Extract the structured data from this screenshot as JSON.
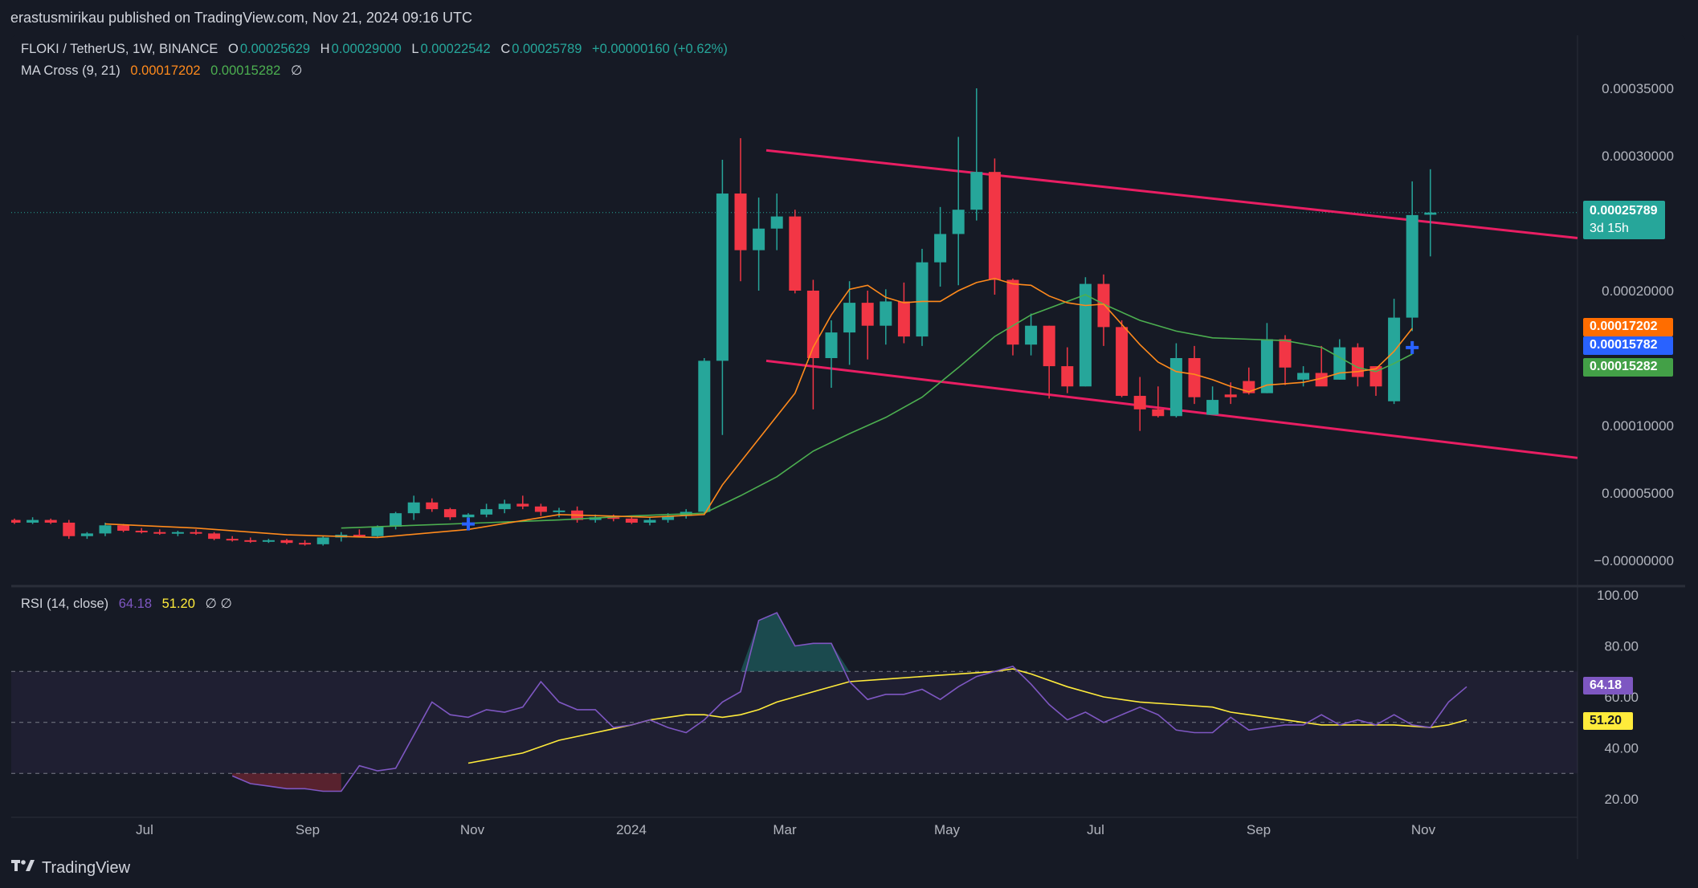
{
  "header": {
    "published": "erastusmirikau published on TradingView.com, Nov 21, 2024 09:16 UTC"
  },
  "legend": {
    "symbol": "FLOKI / TetherUS, 1W, BINANCE",
    "open_label": "O",
    "open": "0.00025629",
    "high_label": "H",
    "high": "0.00029000",
    "low_label": "L",
    "low": "0.00022542",
    "close_label": "C",
    "close": "0.00025789",
    "change": "+0.00000160 (+0.62%)",
    "ma_label": "MA Cross (9, 21)",
    "ma_fast": "0.00017202",
    "ma_slow": "0.00015282",
    "ma_extra": "∅",
    "rsi_label": "RSI (14, close)",
    "rsi_value": "64.18",
    "rsi_ma": "51.20",
    "rsi_extra": "∅ ∅"
  },
  "tags": {
    "price": "0.00025789",
    "countdown": "3d 15h",
    "ma_fast": "0.00017202",
    "cross": "0.00015782",
    "ma_slow": "0.00015282",
    "rsi": "64.18",
    "rsi_ma": "51.20"
  },
  "colors": {
    "up": "#26a69a",
    "down": "#f23645",
    "ma_fast": "#ff8a1c",
    "ma_slow": "#4caf50",
    "channel": "#e91e63",
    "rsi": "#7e57c2",
    "rsi_ma": "#ffeb3b",
    "cross": "#2962ff"
  },
  "footer": {
    "brand": "TradingView"
  },
  "chart_data": [
    {
      "type": "candlestick",
      "title": "FLOKI / TetherUS, 1W, BINANCE",
      "price_axis_ticks": [
        "0.00035000",
        "0.00030000",
        "0.00020000",
        "0.00010000",
        "0.00005000",
        "−0.00000000"
      ],
      "time_axis_ticks": [
        "Jul",
        "Sep",
        "Nov",
        "2024",
        "Mar",
        "May",
        "Jul",
        "Sep",
        "Nov"
      ],
      "ylim": [
        -1e-05,
        0.00036
      ],
      "candles_ohlc": [
        [
          3e-05,
          3.1e-05,
          2.7e-05,
          2.8e-05
        ],
        [
          2.8e-05,
          3.2e-05,
          2.7e-05,
          3e-05
        ],
        [
          3e-05,
          3.1e-05,
          2.7e-05,
          2.8e-05
        ],
        [
          2.8e-05,
          3e-05,
          1.6e-05,
          1.8e-05
        ],
        [
          1.8e-05,
          2.1e-05,
          1.6e-05,
          2e-05
        ],
        [
          2e-05,
          2.8e-05,
          1.8e-05,
          2.6e-05
        ],
        [
          2.6e-05,
          2.7e-05,
          2.1e-05,
          2.2e-05
        ],
        [
          2.2e-05,
          2.4e-05,
          2e-05,
          2.1e-05
        ],
        [
          2.1e-05,
          2.3e-05,
          1.9e-05,
          2e-05
        ],
        [
          2e-05,
          2.2e-05,
          1.8e-05,
          2.1e-05
        ],
        [
          2.1e-05,
          2.3e-05,
          1.9e-05,
          2e-05
        ],
        [
          2e-05,
          2.1e-05,
          1.5e-05,
          1.6e-05
        ],
        [
          1.6e-05,
          1.8e-05,
          1.4e-05,
          1.5e-05
        ],
        [
          1.5e-05,
          1.7e-05,
          1.3e-05,
          1.4e-05
        ],
        [
          1.4e-05,
          1.6e-05,
          1.3e-05,
          1.5e-05
        ],
        [
          1.5e-05,
          1.6e-05,
          1.2e-05,
          1.3e-05
        ],
        [
          1.3e-05,
          1.5e-05,
          1.1e-05,
          1.2e-05
        ],
        [
          1.2e-05,
          1.8e-05,
          1.1e-05,
          1.7e-05
        ],
        [
          1.7e-05,
          2.1e-05,
          1.4e-05,
          1.9e-05
        ],
        [
          1.9e-05,
          2.3e-05,
          1.7e-05,
          1.8e-05
        ],
        [
          1.8e-05,
          2.6e-05,
          1.7e-05,
          2.5e-05
        ],
        [
          2.5e-05,
          3.6e-05,
          2.3e-05,
          3.5e-05
        ],
        [
          3.5e-05,
          4.8e-05,
          3e-05,
          4.3e-05
        ],
        [
          4.3e-05,
          4.6e-05,
          3.6e-05,
          3.8e-05
        ],
        [
          3.8e-05,
          3.9e-05,
          3e-05,
          3.2e-05
        ],
        [
          3.2e-05,
          3.5e-05,
          2.9e-05,
          3.4e-05
        ],
        [
          3.4e-05,
          4.2e-05,
          3.2e-05,
          3.8e-05
        ],
        [
          3.8e-05,
          4.5e-05,
          3.5e-05,
          4.2e-05
        ],
        [
          4.2e-05,
          4.8e-05,
          3.8e-05,
          4e-05
        ],
        [
          4e-05,
          4.2e-05,
          3.3e-05,
          3.6e-05
        ],
        [
          3.6e-05,
          3.9e-05,
          3.2e-05,
          3.7e-05
        ],
        [
          3.7e-05,
          4e-05,
          2.8e-05,
          3e-05
        ],
        [
          3e-05,
          3.4e-05,
          2.8e-05,
          3.2e-05
        ],
        [
          3.2e-05,
          3.4e-05,
          2.9e-05,
          3.1e-05
        ],
        [
          3.1e-05,
          3.2e-05,
          2.7e-05,
          2.8e-05
        ],
        [
          2.8e-05,
          3.2e-05,
          2.6e-05,
          3e-05
        ],
        [
          3e-05,
          3.5e-05,
          2.8e-05,
          3.3e-05
        ],
        [
          3.3e-05,
          3.8e-05,
          3.1e-05,
          3.6e-05
        ],
        [
          3.6e-05,
          0.00015,
          3.4e-05,
          0.000148
        ],
        [
          0.000148,
          0.000297,
          9.3e-05,
          0.000272
        ],
        [
          0.000272,
          0.000313,
          0.000207,
          0.00023
        ],
        [
          0.00023,
          0.000269,
          0.0002,
          0.000246
        ],
        [
          0.000246,
          0.000272,
          0.00023,
          0.000255
        ],
        [
          0.000255,
          0.00026,
          0.000198,
          0.0002
        ],
        [
          0.0002,
          0.000208,
          0.000112,
          0.00015
        ],
        [
          0.00015,
          0.000178,
          0.000128,
          0.000169
        ],
        [
          0.000169,
          0.000207,
          0.000145,
          0.000191
        ],
        [
          0.000191,
          0.0002,
          0.000149,
          0.000174
        ],
        [
          0.000174,
          0.000201,
          0.00016,
          0.000192
        ],
        [
          0.000192,
          0.000206,
          0.000161,
          0.000166
        ],
        [
          0.000166,
          0.000231,
          0.000159,
          0.000221
        ],
        [
          0.000221,
          0.000262,
          0.000203,
          0.000242
        ],
        [
          0.000242,
          0.000314,
          0.000204,
          0.00026
        ],
        [
          0.00026,
          0.00035,
          0.000252,
          0.000288
        ],
        [
          0.000288,
          0.000298,
          0.000197,
          0.000208
        ],
        [
          0.000208,
          0.000209,
          0.000152,
          0.00016
        ],
        [
          0.00016,
          0.000183,
          0.000152,
          0.000174
        ],
        [
          0.000174,
          0.000174,
          0.00012,
          0.000144
        ],
        [
          0.000144,
          0.000158,
          0.000124,
          0.000129
        ],
        [
          0.000129,
          0.00021,
          0.000129,
          0.000205
        ],
        [
          0.000205,
          0.000212,
          0.000159,
          0.000173
        ],
        [
          0.000173,
          0.000178,
          0.000121,
          0.000122
        ],
        [
          0.000122,
          0.000136,
          9.6e-05,
          0.000112
        ],
        [
          0.000112,
          0.000129,
          0.000106,
          0.000107
        ],
        [
          0.000107,
          0.000161,
          0.000106,
          0.00015
        ],
        [
          0.00015,
          0.000159,
          0.000116,
          0.000121
        ],
        [
          0.000108,
          0.000129,
          0.000108,
          0.000119
        ],
        [
          0.000123,
          0.000132,
          0.000116,
          0.000121
        ],
        [
          0.000133,
          0.000143,
          0.000123,
          0.000124
        ],
        [
          0.000124,
          0.000176,
          0.000124,
          0.000164
        ],
        [
          0.000164,
          0.000167,
          0.00013,
          0.000143
        ],
        [
          0.000134,
          0.000144,
          0.000129,
          0.000139
        ],
        [
          0.000139,
          0.000159,
          0.00013,
          0.000129
        ],
        [
          0.000134,
          0.000164,
          0.000134,
          0.000158
        ],
        [
          0.000158,
          0.000161,
          0.000129,
          0.000136
        ],
        [
          0.000144,
          0.000144,
          0.000122,
          0.000129
        ],
        [
          0.000118,
          0.000194,
          0.000116,
          0.00018
        ],
        [
          0.00018,
          0.000281,
          0.00017,
          0.000256
        ],
        [
          0.0002563,
          0.00029,
          0.0002254,
          0.0002579
        ]
      ],
      "ma9": [
        [
          5,
          2.7e-05
        ],
        [
          10,
          2.4e-05
        ],
        [
          15,
          1.9e-05
        ],
        [
          20,
          1.7e-05
        ],
        [
          25,
          2.3e-05
        ],
        [
          30,
          3.4e-05
        ],
        [
          35,
          3.2e-05
        ],
        [
          38,
          3.4e-05
        ],
        [
          39,
          5.6e-05
        ],
        [
          41,
          9e-05
        ],
        [
          43,
          0.000124
        ],
        [
          44,
          0.000158
        ],
        [
          45,
          0.000182
        ],
        [
          46,
          0.000201
        ],
        [
          47,
          0.000204
        ],
        [
          48,
          0.000195
        ],
        [
          49,
          0.000191
        ],
        [
          50,
          0.000192
        ],
        [
          51,
          0.000192
        ],
        [
          52,
          0.0002
        ],
        [
          53,
          0.000206
        ],
        [
          54,
          0.000209
        ],
        [
          55,
          0.000205
        ],
        [
          56,
          0.000204
        ],
        [
          57,
          0.000196
        ],
        [
          58,
          0.000191
        ],
        [
          59,
          0.000189
        ],
        [
          60,
          0.00019
        ],
        [
          61,
          0.000175
        ],
        [
          62,
          0.00016
        ],
        [
          63,
          0.000147
        ],
        [
          64,
          0.00014
        ],
        [
          65,
          0.000138
        ],
        [
          66,
          0.000134
        ],
        [
          67,
          0.000129
        ],
        [
          68,
          0.000125
        ],
        [
          69,
          0.00013
        ],
        [
          70,
          0.000131
        ],
        [
          71,
          0.000132
        ],
        [
          72,
          0.000135
        ],
        [
          73,
          0.000139
        ],
        [
          74,
          0.00014
        ],
        [
          75,
          0.000142
        ],
        [
          76,
          0.000155
        ],
        [
          77,
          0.000172
        ]
      ],
      "ma21": [
        [
          18,
          2.4e-05
        ],
        [
          22,
          2.6e-05
        ],
        [
          26,
          2.8e-05
        ],
        [
          30,
          3e-05
        ],
        [
          34,
          3.3e-05
        ],
        [
          38,
          3.5e-05
        ],
        [
          40,
          4.8e-05
        ],
        [
          42,
          6.2e-05
        ],
        [
          44,
          8.1e-05
        ],
        [
          46,
          9.4e-05
        ],
        [
          48,
          0.000106
        ],
        [
          50,
          0.000121
        ],
        [
          52,
          0.000143
        ],
        [
          54,
          0.000166
        ],
        [
          56,
          0.000182
        ],
        [
          58,
          0.000192
        ],
        [
          59,
          0.000197
        ],
        [
          60,
          0.00019
        ],
        [
          62,
          0.000178
        ],
        [
          64,
          0.00017
        ],
        [
          66,
          0.000165
        ],
        [
          68,
          0.000164
        ],
        [
          70,
          0.000163
        ],
        [
          72,
          0.000158
        ],
        [
          74,
          0.000143
        ],
        [
          75,
          0.00014
        ],
        [
          76,
          0.000146
        ],
        [
          77,
          0.000153
        ]
      ],
      "channel_upper": [
        [
          0.000304,
          0.000239
        ]
      ],
      "channel_lower": [
        [
          0.000148,
          7.6e-05
        ]
      ],
      "cross_markers": [
        [
          25,
          2.7e-05
        ],
        [
          77,
          0.0001578
        ]
      ]
    },
    {
      "type": "line",
      "title": "RSI (14, close)",
      "y_axis_ticks": [
        "100.00",
        "80.00",
        "60.00",
        "40.00",
        "20.00"
      ],
      "ylim": [
        15,
        102
      ],
      "bands": [
        30,
        50,
        70
      ],
      "rsi": [
        [
          12,
          29
        ],
        [
          13,
          26
        ],
        [
          14,
          25
        ],
        [
          15,
          24
        ],
        [
          16,
          24
        ],
        [
          17,
          23
        ],
        [
          18,
          23
        ],
        [
          19,
          33
        ],
        [
          20,
          31
        ],
        [
          21,
          32
        ],
        [
          22,
          45
        ],
        [
          23,
          58
        ],
        [
          24,
          53
        ],
        [
          25,
          52
        ],
        [
          26,
          55
        ],
        [
          27,
          54
        ],
        [
          28,
          56
        ],
        [
          29,
          66
        ],
        [
          30,
          58
        ],
        [
          31,
          55
        ],
        [
          32,
          55
        ],
        [
          33,
          48
        ],
        [
          34,
          49
        ],
        [
          35,
          51
        ],
        [
          36,
          48
        ],
        [
          37,
          46
        ],
        [
          38,
          51
        ],
        [
          39,
          58
        ],
        [
          40,
          62
        ],
        [
          41,
          90
        ],
        [
          42,
          93
        ],
        [
          43,
          80
        ],
        [
          44,
          81
        ],
        [
          45,
          81
        ],
        [
          46,
          66
        ],
        [
          47,
          59
        ],
        [
          48,
          61
        ],
        [
          49,
          61
        ],
        [
          50,
          63
        ],
        [
          51,
          59
        ],
        [
          52,
          64
        ],
        [
          53,
          68
        ],
        [
          54,
          70
        ],
        [
          55,
          72
        ],
        [
          56,
          65
        ],
        [
          57,
          57
        ],
        [
          58,
          51
        ],
        [
          59,
          54
        ],
        [
          60,
          50
        ],
        [
          61,
          53
        ],
        [
          62,
          56
        ],
        [
          63,
          53
        ],
        [
          64,
          47
        ],
        [
          65,
          46
        ],
        [
          66,
          46
        ],
        [
          67,
          52
        ],
        [
          68,
          47
        ],
        [
          69,
          48
        ],
        [
          70,
          49
        ],
        [
          71,
          49
        ],
        [
          72,
          53
        ],
        [
          73,
          49
        ],
        [
          74,
          51
        ],
        [
          75,
          49
        ],
        [
          76,
          53
        ],
        [
          77,
          49
        ],
        [
          78,
          48
        ],
        [
          79,
          58
        ],
        [
          80,
          64
        ]
      ],
      "rsi_ma": [
        [
          25,
          34
        ],
        [
          28,
          38
        ],
        [
          30,
          43
        ],
        [
          32,
          46
        ],
        [
          34,
          49
        ],
        [
          35,
          51
        ],
        [
          36,
          52
        ],
        [
          37,
          53
        ],
        [
          38,
          53
        ],
        [
          39,
          52
        ],
        [
          40,
          53
        ],
        [
          41,
          55
        ],
        [
          42,
          58
        ],
        [
          43,
          60
        ],
        [
          44,
          62
        ],
        [
          46,
          66
        ],
        [
          48,
          67
        ],
        [
          50,
          68
        ],
        [
          52,
          69
        ],
        [
          54,
          70
        ],
        [
          55,
          71
        ],
        [
          56,
          69
        ],
        [
          58,
          64
        ],
        [
          60,
          60
        ],
        [
          62,
          58
        ],
        [
          64,
          57
        ],
        [
          66,
          56
        ],
        [
          67,
          54
        ],
        [
          68,
          53
        ],
        [
          70,
          51
        ],
        [
          72,
          49
        ],
        [
          74,
          49
        ],
        [
          76,
          49
        ],
        [
          78,
          48
        ],
        [
          79,
          49
        ],
        [
          80,
          51
        ]
      ],
      "markers": [
        "64.18",
        "51.20"
      ]
    }
  ]
}
